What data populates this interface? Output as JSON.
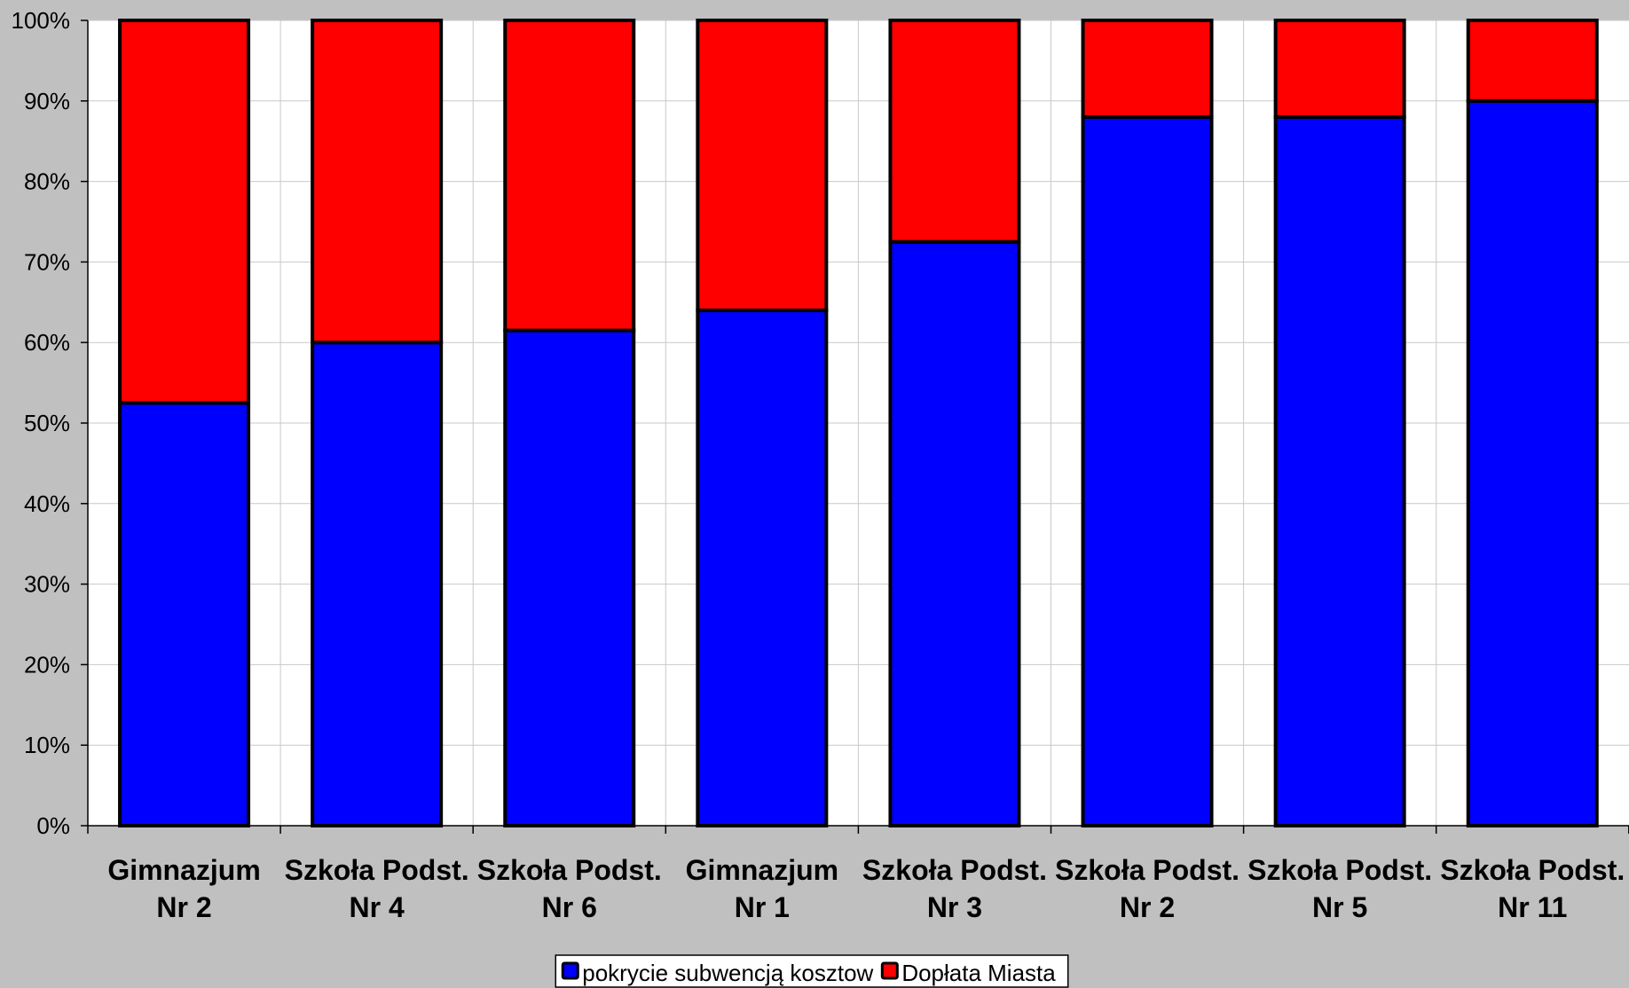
{
  "chart_data": {
    "type": "bar",
    "stacked": true,
    "percent_stacked": true,
    "categories": [
      [
        "Gimnazjum",
        "Nr 2"
      ],
      [
        "Szkoła Podst.",
        "Nr 4"
      ],
      [
        "Szkoła Podst.",
        "Nr 6"
      ],
      [
        "Gimnazjum",
        "Nr 1"
      ],
      [
        "Szkoła Podst.",
        "Nr 3"
      ],
      [
        "Szkoła Podst.",
        "Nr 2"
      ],
      [
        "Szkoła Podst.",
        "Nr 5"
      ],
      [
        "Szkoła Podst.",
        "Nr 11"
      ]
    ],
    "series": [
      {
        "name": "pokrycie subwencją kosztow",
        "color": "#0000ff",
        "values": [
          52.5,
          60,
          61.5,
          64,
          72.5,
          88,
          88,
          90
        ]
      },
      {
        "name": "Dopłata Miasta",
        "color": "#ff0000",
        "values": [
          47.5,
          40,
          38.5,
          36,
          27.5,
          12,
          12,
          10
        ]
      }
    ],
    "ylim": [
      0,
      100
    ],
    "yticks": [
      "0%",
      "10%",
      "20%",
      "30%",
      "40%",
      "50%",
      "60%",
      "70%",
      "80%",
      "90%",
      "100%"
    ],
    "title": "",
    "xlabel": "",
    "ylabel": "",
    "grid": true,
    "legend": "bottom-center"
  }
}
